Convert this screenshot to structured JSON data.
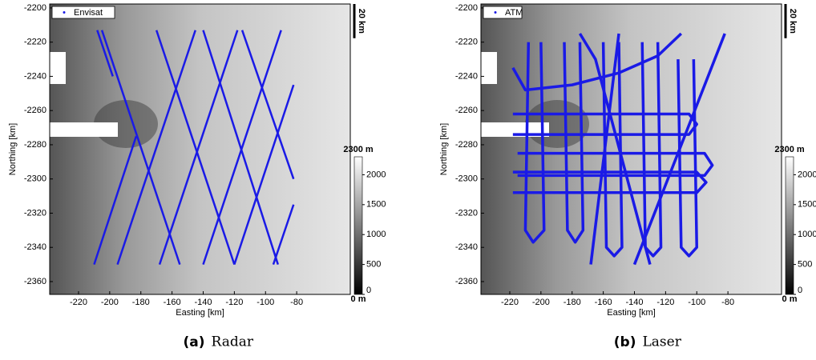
{
  "chart_data": [
    {
      "type": "map",
      "caption_tag": "(a)",
      "caption": "Radar",
      "xlabel": "Easting [km]",
      "ylabel": "Northing [km]",
      "xlim": [
        -238.5,
        -45.6
      ],
      "ylim": [
        -2367.5,
        -2197.7
      ],
      "xticks": [
        -220,
        -200,
        -180,
        -160,
        -140,
        -120,
        -100,
        -80
      ],
      "yticks": [
        -2200,
        -2220,
        -2240,
        -2260,
        -2280,
        -2300,
        -2320,
        -2340,
        -2360
      ],
      "legend": "Envisat",
      "color": "#1a1ae6",
      "tracks": [
        {
          "x": [
            -205,
            -155
          ],
          "y": [
            -2213,
            -2350
          ]
        },
        {
          "x": [
            -170,
            -120
          ],
          "y": [
            -2213,
            -2350
          ]
        },
        {
          "x": [
            -140,
            -92
          ],
          "y": [
            -2213,
            -2350
          ]
        },
        {
          "x": [
            -115,
            -82
          ],
          "y": [
            -2213,
            -2300
          ]
        },
        {
          "x": [
            -183,
            -210
          ],
          "y": [
            -2275,
            -2350
          ]
        },
        {
          "x": [
            -145,
            -195
          ],
          "y": [
            -2213,
            -2350
          ]
        },
        {
          "x": [
            -118,
            -168
          ],
          "y": [
            -2213,
            -2350
          ]
        },
        {
          "x": [
            -90,
            -140
          ],
          "y": [
            -2213,
            -2350
          ]
        },
        {
          "x": [
            -82,
            -120
          ],
          "y": [
            -2245,
            -2350
          ]
        },
        {
          "x": [
            -82,
            -95
          ],
          "y": [
            -2315,
            -2350
          ]
        },
        {
          "x": [
            -208,
            -198
          ],
          "y": [
            -2213,
            -2240
          ]
        }
      ],
      "cbar_lim": [
        0,
        2300
      ],
      "cbar_ticks": [
        0,
        500,
        1000,
        1500,
        2000
      ],
      "cbar_end_labels": [
        {
          "value": 0,
          "label": "0 m"
        },
        {
          "value": 2300,
          "label": "2300 m"
        }
      ],
      "scale_bar": {
        "value": 20,
        "label": "20 km"
      }
    },
    {
      "type": "map",
      "caption_tag": "(b)",
      "caption": "Laser",
      "xlabel": "Easting [km]",
      "ylabel": "Northing [km]",
      "xlim": [
        -238.5,
        -45.6
      ],
      "ylim": [
        -2367.5,
        -2197.7
      ],
      "xticks": [
        -220,
        -200,
        -180,
        -160,
        -140,
        -120,
        -100,
        -80
      ],
      "yticks": [
        -2200,
        -2220,
        -2240,
        -2260,
        -2280,
        -2300,
        -2320,
        -2340,
        -2360
      ],
      "legend": "ATM",
      "color": "#1a1ae6",
      "tracks": [
        {
          "x": [
            -218,
            -105,
            -100,
            -105,
            -218
          ],
          "y": [
            -2262,
            -2262,
            -2268,
            -2274,
            -2274
          ]
        },
        {
          "x": [
            -215,
            -95,
            -90,
            -95,
            -215
          ],
          "y": [
            -2285,
            -2285,
            -2292,
            -2298,
            -2298
          ]
        },
        {
          "x": [
            -218,
            -100,
            -94,
            -100,
            -218
          ],
          "y": [
            -2308,
            -2308,
            -2302,
            -2296,
            -2296
          ]
        },
        {
          "x": [
            -200,
            -198,
            -205,
            -210,
            -208
          ],
          "y": [
            -2220,
            -2330,
            -2337,
            -2330,
            -2220
          ]
        },
        {
          "x": [
            -185,
            -183,
            -178,
            -173,
            -175
          ],
          "y": [
            -2220,
            -2330,
            -2337,
            -2330,
            -2220
          ]
        },
        {
          "x": [
            -160,
            -158,
            -153,
            -148,
            -150
          ],
          "y": [
            -2220,
            -2340,
            -2345,
            -2340,
            -2220
          ]
        },
        {
          "x": [
            -135,
            -133,
            -128,
            -123,
            -125
          ],
          "y": [
            -2220,
            -2340,
            -2345,
            -2340,
            -2220
          ]
        },
        {
          "x": [
            -112,
            -110,
            -105,
            -100,
            -102
          ],
          "y": [
            -2230,
            -2340,
            -2345,
            -2340,
            -2230
          ]
        },
        {
          "x": [
            -168,
            -150
          ],
          "y": [
            -2350,
            -2215
          ]
        },
        {
          "x": [
            -140,
            -82
          ],
          "y": [
            -2350,
            -2215
          ]
        },
        {
          "x": [
            -130,
            -165,
            -175
          ],
          "y": [
            -2350,
            -2230,
            -2215
          ]
        },
        {
          "x": [
            -218,
            -210,
            -180,
            -150,
            -125,
            -110
          ],
          "y": [
            -2235,
            -2248,
            -2245,
            -2238,
            -2228,
            -2215
          ]
        }
      ],
      "cbar_lim": [
        0,
        2300
      ],
      "cbar_ticks": [
        0,
        500,
        1000,
        1500,
        2000
      ],
      "cbar_end_labels": [
        {
          "value": 0,
          "label": "0 m"
        },
        {
          "value": 2300,
          "label": "2300 m"
        }
      ],
      "scale_bar": {
        "value": 20,
        "label": "20 km"
      }
    }
  ]
}
